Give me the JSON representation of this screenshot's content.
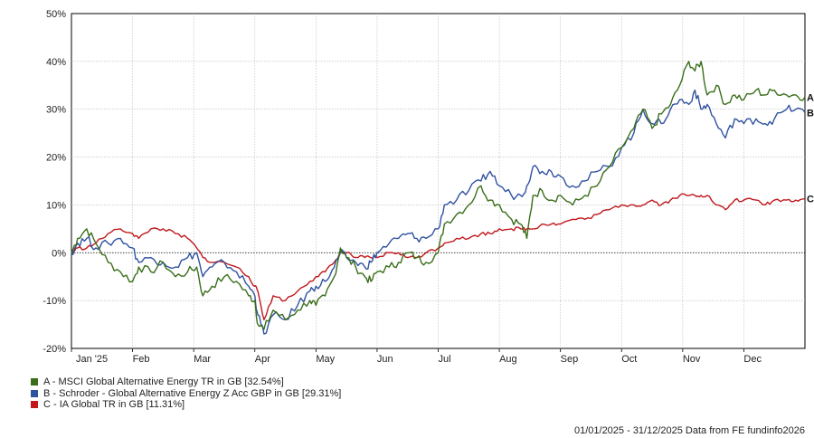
{
  "chart_data": {
    "type": "line",
    "ylim": [
      -20,
      50
    ],
    "y_ticks": [
      "50%",
      "40%",
      "30%",
      "20%",
      "10%",
      "0%",
      "-10%",
      "-20%"
    ],
    "x_ticks": [
      "Jan '25",
      "Feb",
      "Mar",
      "Apr",
      "May",
      "Jun",
      "Jul",
      "Aug",
      "Sep",
      "Oct",
      "Nov",
      "Dec"
    ],
    "grid": true,
    "zero_line": "dotted",
    "series": [
      {
        "key": "A",
        "name": "A - MSCI Global Alternative Energy TR in GB [32.54%]",
        "color": "#3a6e1a",
        "points": [
          [
            0,
            0
          ],
          [
            0.1,
            3
          ],
          [
            0.25,
            5
          ],
          [
            0.4,
            2
          ],
          [
            0.6,
            -2
          ],
          [
            0.8,
            -4
          ],
          [
            1.0,
            -6
          ],
          [
            1.1,
            -3
          ],
          [
            1.3,
            -4
          ],
          [
            1.5,
            -2
          ],
          [
            1.7,
            -5
          ],
          [
            1.9,
            -4
          ],
          [
            2.05,
            -3
          ],
          [
            2.15,
            -9
          ],
          [
            2.3,
            -7
          ],
          [
            2.5,
            -5
          ],
          [
            2.7,
            -6
          ],
          [
            2.9,
            -9
          ],
          [
            3.0,
            -10
          ],
          [
            3.05,
            -15
          ],
          [
            3.15,
            -16
          ],
          [
            3.3,
            -12
          ],
          [
            3.5,
            -14
          ],
          [
            3.7,
            -12
          ],
          [
            3.9,
            -10
          ],
          [
            4.0,
            -11
          ],
          [
            4.15,
            -9
          ],
          [
            4.3,
            -5
          ],
          [
            4.4,
            1
          ],
          [
            4.5,
            -1
          ],
          [
            4.65,
            -3
          ],
          [
            4.8,
            -5
          ],
          [
            4.9,
            -6
          ],
          [
            5.0,
            -4
          ],
          [
            5.2,
            -3
          ],
          [
            5.35,
            -2
          ],
          [
            5.5,
            0
          ],
          [
            5.65,
            -1
          ],
          [
            5.8,
            -2
          ],
          [
            6.0,
            0
          ],
          [
            6.1,
            6
          ],
          [
            6.3,
            8
          ],
          [
            6.5,
            10
          ],
          [
            6.7,
            14
          ],
          [
            6.85,
            11
          ],
          [
            7.0,
            10
          ],
          [
            7.2,
            7
          ],
          [
            7.35,
            6
          ],
          [
            7.45,
            3
          ],
          [
            7.55,
            12
          ],
          [
            7.7,
            13
          ],
          [
            7.85,
            11
          ],
          [
            8.0,
            12
          ],
          [
            8.2,
            10
          ],
          [
            8.4,
            12
          ],
          [
            8.6,
            14
          ],
          [
            8.8,
            18
          ],
          [
            9.0,
            22
          ],
          [
            9.2,
            26
          ],
          [
            9.35,
            30
          ],
          [
            9.5,
            26
          ],
          [
            9.65,
            29
          ],
          [
            9.8,
            31
          ],
          [
            9.95,
            35
          ],
          [
            10.1,
            40
          ],
          [
            10.2,
            38
          ],
          [
            10.3,
            40
          ],
          [
            10.4,
            33
          ],
          [
            10.55,
            35
          ],
          [
            10.7,
            31
          ],
          [
            10.85,
            33
          ],
          [
            11.0,
            32
          ],
          [
            11.2,
            34
          ],
          [
            11.35,
            33
          ],
          [
            11.5,
            34
          ],
          [
            11.7,
            33
          ],
          [
            11.85,
            33
          ],
          [
            12.0,
            32.54
          ]
        ]
      },
      {
        "key": "B",
        "name": "B - Schroder - Global Alternative Energy Z Acc GBP in GB [29.31%]",
        "color": "#2f52a0",
        "points": [
          [
            0,
            0
          ],
          [
            0.1,
            2
          ],
          [
            0.25,
            3
          ],
          [
            0.4,
            1
          ],
          [
            0.6,
            2
          ],
          [
            0.8,
            3
          ],
          [
            1.0,
            1
          ],
          [
            1.1,
            -2
          ],
          [
            1.3,
            -1
          ],
          [
            1.5,
            -2
          ],
          [
            1.7,
            -3
          ],
          [
            1.9,
            -1
          ],
          [
            2.05,
            0
          ],
          [
            2.15,
            -5
          ],
          [
            2.3,
            -3
          ],
          [
            2.5,
            -2
          ],
          [
            2.7,
            -4
          ],
          [
            2.9,
            -7
          ],
          [
            3.0,
            -9
          ],
          [
            3.05,
            -13
          ],
          [
            3.15,
            -17
          ],
          [
            3.3,
            -13
          ],
          [
            3.5,
            -14
          ],
          [
            3.7,
            -11
          ],
          [
            3.9,
            -8
          ],
          [
            4.0,
            -7
          ],
          [
            4.15,
            -6
          ],
          [
            4.3,
            -3
          ],
          [
            4.4,
            0
          ],
          [
            4.5,
            -1
          ],
          [
            4.65,
            -2
          ],
          [
            4.8,
            -3
          ],
          [
            4.9,
            -2
          ],
          [
            5.0,
            0
          ],
          [
            5.2,
            2
          ],
          [
            5.35,
            3
          ],
          [
            5.5,
            4
          ],
          [
            5.65,
            3
          ],
          [
            5.8,
            3
          ],
          [
            6.0,
            5
          ],
          [
            6.1,
            10
          ],
          [
            6.3,
            11
          ],
          [
            6.5,
            13
          ],
          [
            6.7,
            15
          ],
          [
            6.85,
            17
          ],
          [
            7.0,
            14
          ],
          [
            7.2,
            12
          ],
          [
            7.35,
            12
          ],
          [
            7.45,
            14
          ],
          [
            7.55,
            18
          ],
          [
            7.7,
            17
          ],
          [
            7.85,
            17
          ],
          [
            8.0,
            16
          ],
          [
            8.2,
            14
          ],
          [
            8.4,
            15
          ],
          [
            8.6,
            17
          ],
          [
            8.8,
            18
          ],
          [
            9.0,
            22
          ],
          [
            9.2,
            25
          ],
          [
            9.35,
            30
          ],
          [
            9.5,
            27
          ],
          [
            9.65,
            27
          ],
          [
            9.8,
            30
          ],
          [
            9.95,
            32
          ],
          [
            10.1,
            31
          ],
          [
            10.2,
            34
          ],
          [
            10.3,
            30
          ],
          [
            10.4,
            31
          ],
          [
            10.55,
            27
          ],
          [
            10.7,
            24
          ],
          [
            10.85,
            28
          ],
          [
            11.0,
            27
          ],
          [
            11.2,
            28
          ],
          [
            11.35,
            27
          ],
          [
            11.5,
            28
          ],
          [
            11.7,
            30
          ],
          [
            11.85,
            30
          ],
          [
            12.0,
            29.31
          ]
        ]
      },
      {
        "key": "C",
        "name": "C - IA Global TR in GB [11.31%]",
        "color": "#c0181c",
        "points": [
          [
            0,
            0
          ],
          [
            0.1,
            1
          ],
          [
            0.25,
            1
          ],
          [
            0.4,
            2
          ],
          [
            0.6,
            4
          ],
          [
            0.8,
            5
          ],
          [
            1.0,
            4
          ],
          [
            1.1,
            3
          ],
          [
            1.3,
            5
          ],
          [
            1.5,
            5
          ],
          [
            1.7,
            4
          ],
          [
            1.9,
            3
          ],
          [
            2.05,
            1
          ],
          [
            2.15,
            -1
          ],
          [
            2.3,
            -2
          ],
          [
            2.5,
            -2
          ],
          [
            2.7,
            -3
          ],
          [
            2.9,
            -5
          ],
          [
            3.0,
            -7
          ],
          [
            3.05,
            -8
          ],
          [
            3.15,
            -14
          ],
          [
            3.3,
            -9
          ],
          [
            3.5,
            -10
          ],
          [
            3.7,
            -8
          ],
          [
            3.9,
            -6
          ],
          [
            4.0,
            -5
          ],
          [
            4.15,
            -4
          ],
          [
            4.3,
            -2
          ],
          [
            4.4,
            0
          ],
          [
            4.5,
            0
          ],
          [
            4.65,
            -1
          ],
          [
            4.8,
            -1
          ],
          [
            4.9,
            -1
          ],
          [
            5.0,
            -1
          ],
          [
            5.2,
            0
          ],
          [
            5.35,
            0
          ],
          [
            5.5,
            -1
          ],
          [
            5.65,
            -1
          ],
          [
            5.8,
            0
          ],
          [
            6.0,
            1
          ],
          [
            6.1,
            2
          ],
          [
            6.3,
            3
          ],
          [
            6.5,
            3
          ],
          [
            6.7,
            4
          ],
          [
            6.85,
            4
          ],
          [
            7.0,
            5
          ],
          [
            7.2,
            5
          ],
          [
            7.35,
            5
          ],
          [
            7.45,
            5
          ],
          [
            7.55,
            5
          ],
          [
            7.7,
            6
          ],
          [
            7.85,
            6
          ],
          [
            8.0,
            6
          ],
          [
            8.2,
            7
          ],
          [
            8.4,
            7
          ],
          [
            8.6,
            8
          ],
          [
            8.8,
            9
          ],
          [
            9.0,
            10
          ],
          [
            9.2,
            10
          ],
          [
            9.35,
            10
          ],
          [
            9.5,
            11
          ],
          [
            9.65,
            10
          ],
          [
            9.8,
            11
          ],
          [
            9.95,
            12
          ],
          [
            10.1,
            12
          ],
          [
            10.2,
            12
          ],
          [
            10.3,
            12
          ],
          [
            10.4,
            12
          ],
          [
            10.55,
            10
          ],
          [
            10.7,
            9
          ],
          [
            10.85,
            11
          ],
          [
            11.0,
            11
          ],
          [
            11.2,
            11
          ],
          [
            11.35,
            10
          ],
          [
            11.5,
            11
          ],
          [
            11.7,
            11
          ],
          [
            11.85,
            11
          ],
          [
            12.0,
            11.31
          ]
        ]
      }
    ]
  },
  "footer": {
    "text": "01/01/2025 - 31/12/2025 Data from FE fundinfo2026"
  }
}
